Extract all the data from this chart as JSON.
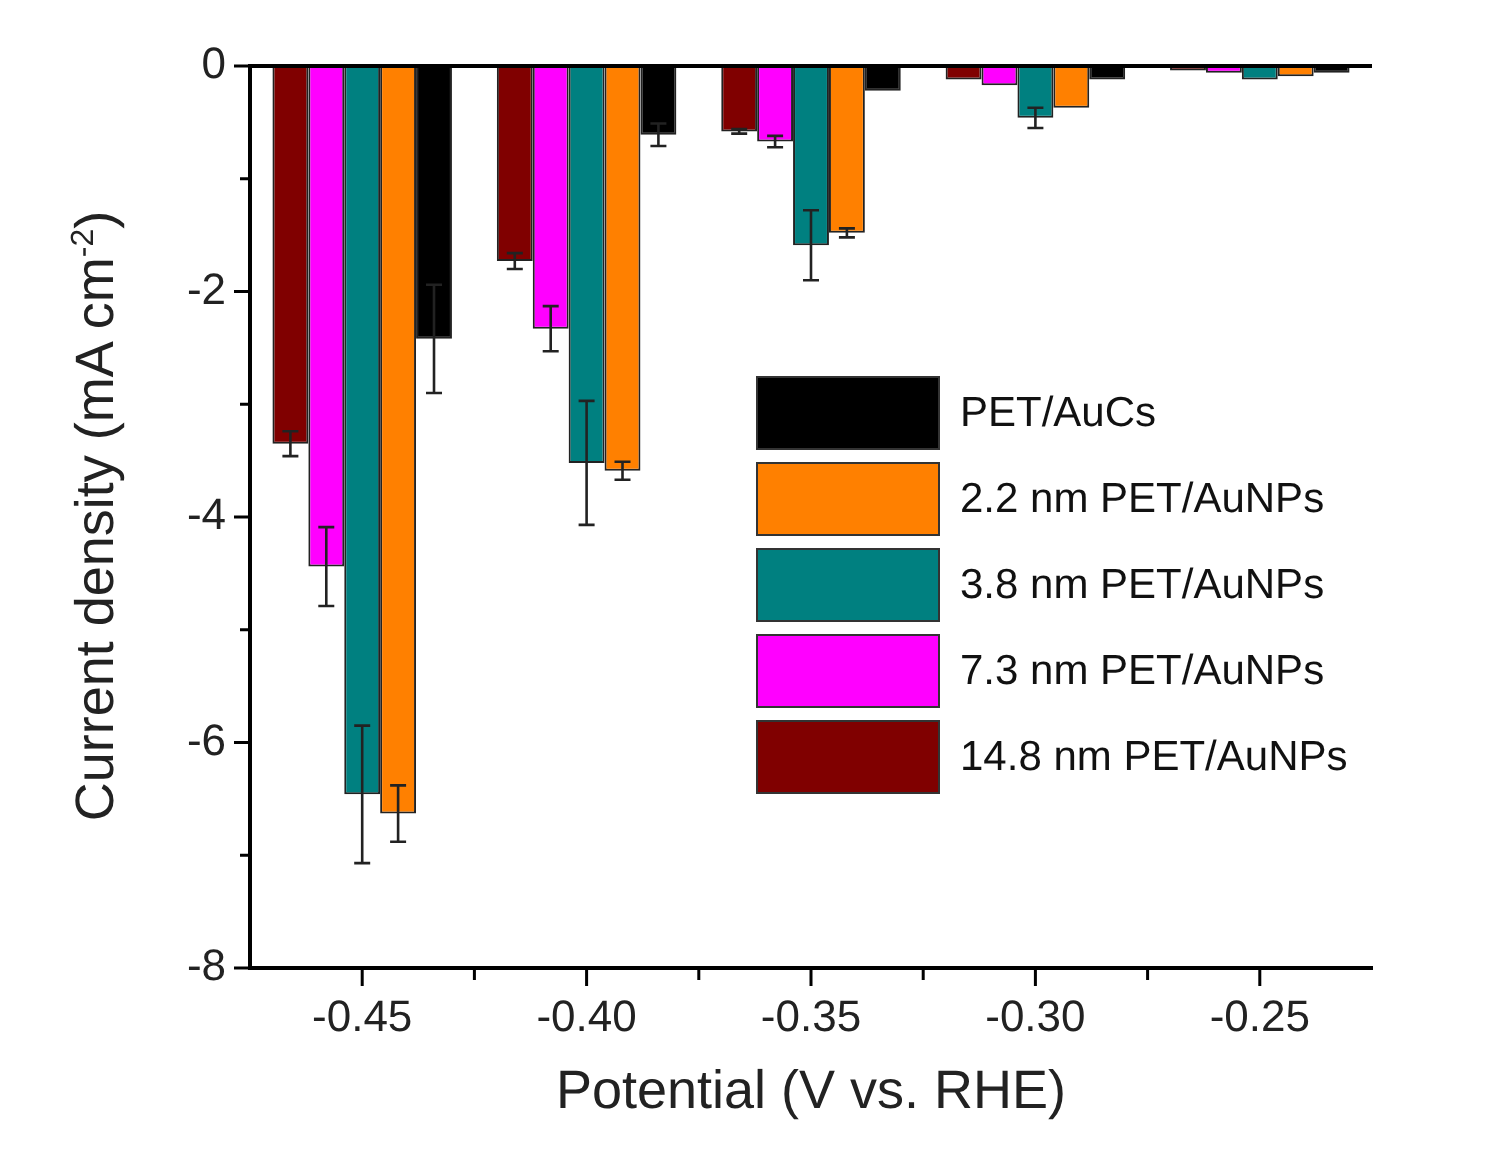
{
  "chart_data": {
    "type": "bar",
    "xlabel": "Potential (V vs. RHE)",
    "ylabel": "Current density (mA cm$^{-2}$)",
    "categories": [
      "-0.45",
      "-0.40",
      "-0.35",
      "-0.30",
      "-0.25"
    ],
    "series": [
      {
        "name": "14.8 nm PET/AuNPs",
        "color": "#800000",
        "values": [
          -3.35,
          -1.73,
          -0.58,
          -0.12,
          -0.04
        ],
        "errors": [
          0.11,
          0.07,
          0.02,
          null,
          null
        ]
      },
      {
        "name": "7.3 nm PET/AuNPs",
        "color": "#ff00ff",
        "values": [
          -4.44,
          -2.33,
          -0.67,
          -0.17,
          -0.06
        ],
        "errors": [
          0.35,
          0.2,
          0.05,
          null,
          null
        ]
      },
      {
        "name": "3.8 nm PET/AuNPs",
        "color": "#008080",
        "values": [
          -6.46,
          -3.52,
          -1.59,
          -0.46,
          -0.12
        ],
        "errors": [
          0.61,
          0.55,
          0.31,
          0.09,
          null
        ]
      },
      {
        "name": "2.2 nm PET/AuNPs",
        "color": "#ff8000",
        "values": [
          -6.63,
          -3.59,
          -1.48,
          -0.37,
          -0.09
        ],
        "errors": [
          0.25,
          0.08,
          0.04,
          null,
          null
        ]
      },
      {
        "name": "PET/AuCs",
        "color": "#000000",
        "values": [
          -2.42,
          -0.61,
          -0.22,
          -0.12,
          -0.06
        ],
        "errors": [
          0.48,
          0.1,
          null,
          null,
          null
        ]
      }
    ],
    "ylim": [
      -8,
      0
    ],
    "yticks": [
      {
        "value": -8,
        "label": "-8"
      },
      {
        "value": -7,
        "label": null
      },
      {
        "value": -6,
        "label": "-6"
      },
      {
        "value": -5,
        "label": null
      },
      {
        "value": -4,
        "label": "-4"
      },
      {
        "value": -3,
        "label": null
      },
      {
        "value": -2,
        "label": "-2"
      },
      {
        "value": -1,
        "label": null
      },
      {
        "value": 0,
        "label": "0"
      }
    ],
    "grid": false,
    "legend": "right"
  }
}
